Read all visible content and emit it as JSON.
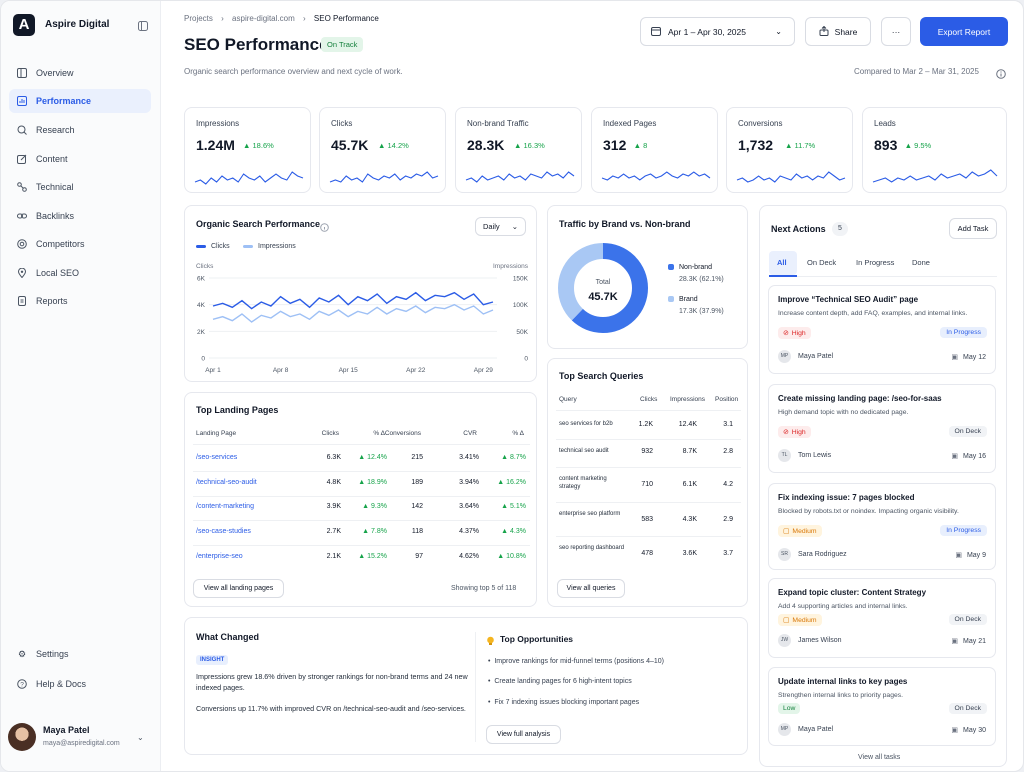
{
  "sidebar": {
    "brand": "Aspire Digital",
    "logo_letter": "A",
    "items": [
      {
        "label": "Overview",
        "icon": "grid-icon"
      },
      {
        "label": "Performance",
        "icon": "bar-chart-icon"
      },
      {
        "label": "Research",
        "icon": "search-icon"
      },
      {
        "label": "Content",
        "icon": "edit-icon"
      },
      {
        "label": "Technical",
        "icon": "tech-icon"
      },
      {
        "label": "Backlinks",
        "icon": "link-icon"
      },
      {
        "label": "Competitors",
        "icon": "target-icon"
      },
      {
        "label": "Local SEO",
        "icon": "pin-icon"
      },
      {
        "label": "Reports",
        "icon": "report-icon"
      }
    ],
    "settings": "Settings",
    "help": "Help & Docs",
    "user": {
      "name": "Maya Patel",
      "email": "maya@aspiredigital.com"
    }
  },
  "header": {
    "breadcrumb": [
      "Projects",
      "aspire-digital.com",
      "SEO Performance"
    ],
    "title": "SEO Performance",
    "status": "On Track",
    "subtitle": "Organic search performance overview and next cycle of work.",
    "date_range": "Apr 1 – Apr 30, 2025",
    "share": "Share",
    "more": "···",
    "export": "Export Report",
    "compared": "Compared to Mar 2 – Mar 31, 2025"
  },
  "kpis": [
    {
      "label": "Impressions",
      "value": "1.24M",
      "change": "18.6%"
    },
    {
      "label": "Clicks",
      "value": "45.7K",
      "change": "14.2%"
    },
    {
      "label": "Non-brand Traffic",
      "value": "28.3K",
      "change": "16.3%"
    },
    {
      "label": "Indexed Pages",
      "value": "312",
      "change": "8"
    },
    {
      "label": "Conversions",
      "value": "1,732",
      "change": "11.7%"
    },
    {
      "label": "Leads",
      "value": "893",
      "change": "9.5%"
    }
  ],
  "organic": {
    "title": "Organic Search Performance",
    "interval": "Daily",
    "legend_clicks": "Clicks",
    "legend_impressions": "Impressions",
    "left_axis_label": "Clicks",
    "right_axis_label": "Impressions"
  },
  "chart_data": {
    "type": "line",
    "x": [
      "Apr 1",
      "Apr 2",
      "Apr 3",
      "Apr 4",
      "Apr 5",
      "Apr 6",
      "Apr 7",
      "Apr 8",
      "Apr 9",
      "Apr 10",
      "Apr 11",
      "Apr 12",
      "Apr 13",
      "Apr 14",
      "Apr 15",
      "Apr 16",
      "Apr 17",
      "Apr 18",
      "Apr 19",
      "Apr 20",
      "Apr 21",
      "Apr 22",
      "Apr 23",
      "Apr 24",
      "Apr 25",
      "Apr 26",
      "Apr 27",
      "Apr 28",
      "Apr 29",
      "Apr 30"
    ],
    "xticks": [
      "Apr 1",
      "Apr 8",
      "Apr 15",
      "Apr 22",
      "Apr 29"
    ],
    "yticks_left": [
      "6K",
      "4K",
      "2K",
      "0"
    ],
    "yticks_right": [
      "150K",
      "100K",
      "50K",
      "0"
    ],
    "ylim_left": [
      0,
      6000
    ],
    "ylim_right": [
      0,
      150000
    ],
    "series": [
      {
        "name": "Clicks",
        "axis": "left",
        "color": "#2b5ce6",
        "values": [
          3900,
          4100,
          3800,
          4300,
          3700,
          4200,
          3900,
          4600,
          4100,
          4400,
          3800,
          4500,
          4200,
          4700,
          4000,
          4600,
          4300,
          4800,
          4100,
          4600,
          4400,
          4900,
          4300,
          4700,
          4600,
          4900,
          4400,
          4800,
          4000,
          4200
        ]
      },
      {
        "name": "Impressions",
        "axis": "left",
        "color": "#9ec0f5",
        "values": [
          2900,
          3100,
          2800,
          3300,
          2700,
          3200,
          3000,
          3500,
          3100,
          3300,
          2900,
          3500,
          3200,
          3600,
          3100,
          3500,
          3300,
          3800,
          3300,
          3700,
          3500,
          3900,
          3400,
          3800,
          3700,
          4000,
          3600,
          3900,
          3300,
          3600
        ]
      }
    ]
  },
  "brand": {
    "title": "Traffic by Brand vs. Non-brand",
    "total_label": "Total",
    "total": "45.7K",
    "items": [
      {
        "label": "Non-brand",
        "value": "28.3K (62.1%)",
        "share": 62.1,
        "color": "#3b73ea"
      },
      {
        "label": "Brand",
        "value": "17.3K (37.9%)",
        "share": 37.9,
        "color": "#a9c8f4"
      }
    ]
  },
  "landing": {
    "title": "Top Landing Pages",
    "headers": [
      "Landing Page",
      "Clicks",
      "% Δ",
      "Conversions",
      "CVR",
      "% Δ"
    ],
    "rows": [
      [
        "/seo-services",
        "6.3K",
        "12.4%",
        "215",
        "3.41%",
        "8.7%"
      ],
      [
        "/technical-seo-audit",
        "4.8K",
        "18.9%",
        "189",
        "3.94%",
        "16.2%"
      ],
      [
        "/content-marketing",
        "3.9K",
        "9.3%",
        "142",
        "3.64%",
        "5.1%"
      ],
      [
        "/seo-case-studies",
        "2.7K",
        "7.8%",
        "118",
        "4.37%",
        "4.3%"
      ],
      [
        "/enterprise-seo",
        "2.1K",
        "15.2%",
        "97",
        "4.62%",
        "10.8%"
      ]
    ],
    "view_all": "View all landing pages",
    "showing": "Showing top 5 of 118"
  },
  "queries": {
    "title": "Top Search Queries",
    "headers": [
      "Query",
      "Clicks",
      "Impressions",
      "Position"
    ],
    "rows": [
      [
        "seo services for b2b",
        "1.2K",
        "12.4K",
        "3.1"
      ],
      [
        "technical seo audit",
        "932",
        "8.7K",
        "2.8"
      ],
      [
        "content marketing strategy",
        "710",
        "6.1K",
        "4.2"
      ],
      [
        "enterprise seo platform",
        "583",
        "4.3K",
        "2.9"
      ],
      [
        "seo reporting dashboard",
        "478",
        "3.6K",
        "3.7"
      ]
    ],
    "view_all": "View all queries"
  },
  "changed": {
    "title": "What Changed",
    "tag": "INSIGHT",
    "p1": "Impressions grew 18.6% driven by stronger rankings for non-brand terms and 24 new indexed pages.",
    "p2": "Conversions up 11.7% with improved CVR on /technical-seo-audit and /seo-services."
  },
  "opportunities": {
    "title": "Top Opportunities",
    "items": [
      "Improve rankings for mid-funnel terms (positions 4–10)",
      "Create landing pages for 6 high-intent topics",
      "Fix 7 indexing issues blocking important pages"
    ],
    "button": "View full analysis"
  },
  "actions": {
    "title": "Next Actions",
    "count": "5",
    "add": "Add Task",
    "tabs": [
      "All",
      "On Deck",
      "In Progress",
      "Done"
    ],
    "items": [
      {
        "title": "Improve “Technical SEO Audit” page",
        "desc": "Increase content depth, add FAQ, examples, and internal links.",
        "priority": "High",
        "status": "In Progress",
        "initials": "MP",
        "owner": "Maya Patel",
        "due": "May 12"
      },
      {
        "title": "Create missing landing page: /seo-for-saas",
        "desc": "High demand topic with no dedicated page.",
        "priority": "High",
        "status": "On Deck",
        "initials": "TL",
        "owner": "Tom Lewis",
        "due": "May 16"
      },
      {
        "title": "Fix indexing issue: 7 pages blocked",
        "desc": "Blocked by robots.txt or noindex. Impacting organic visibility.",
        "priority": "Medium",
        "status": "In Progress",
        "initials": "SR",
        "owner": "Sara Rodriguez",
        "due": "May 9"
      },
      {
        "title": "Expand topic cluster: Content Strategy",
        "desc": "Add 4 supporting articles and internal links.",
        "priority": "Medium",
        "status": "On Deck",
        "initials": "JW",
        "owner": "James Wilson",
        "due": "May 21"
      },
      {
        "title": "Update internal links to key pages",
        "desc": "Strengthen internal links to priority pages.",
        "priority": "Low",
        "status": "On Deck",
        "initials": "MP",
        "owner": "Maya Patel",
        "due": "May 30"
      }
    ],
    "view_all": "View all tasks"
  }
}
